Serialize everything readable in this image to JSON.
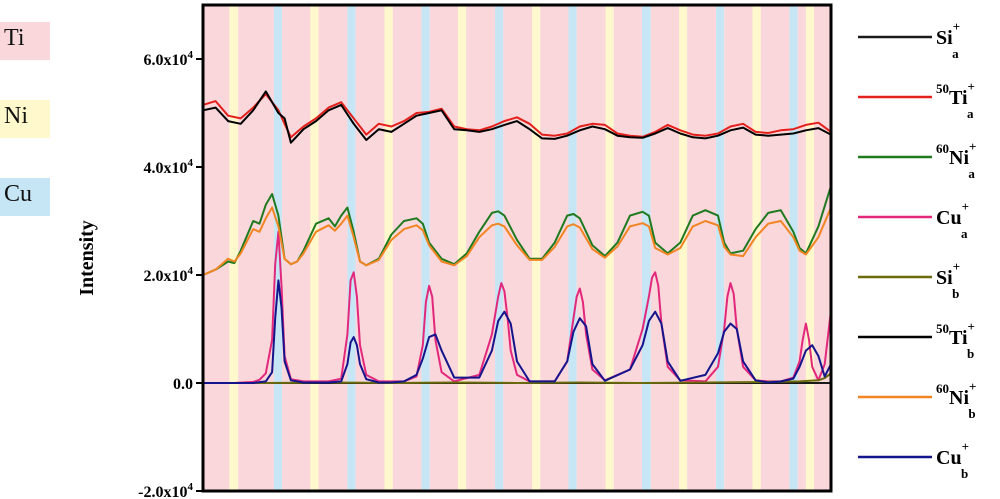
{
  "layer_key": [
    {
      "label": "Ti",
      "color": "#f9d7db"
    },
    {
      "label": "Ni",
      "color": "#fff8cc"
    },
    {
      "label": "Cu",
      "color": "#c6e6f5"
    }
  ],
  "chart_data": {
    "type": "line",
    "title": "",
    "xlabel": "",
    "ylabel": "Intensity",
    "ylim": [
      -20000,
      70000
    ],
    "xlim": [
      0,
      100
    ],
    "grid": false,
    "legend_position": "right-outside",
    "y_ticks": [
      {
        "value": 60000,
        "label": "6.0x10",
        "exp": "4"
      },
      {
        "value": 40000,
        "label": "4.0x10",
        "exp": "4"
      },
      {
        "value": 20000,
        "label": "2.0x10",
        "exp": "4"
      },
      {
        "value": 0,
        "label": "0.0",
        "exp": ""
      },
      {
        "value": -20000,
        "label": "-2.0x10",
        "exp": "4"
      }
    ],
    "bands": [
      {
        "start": 0.0,
        "end": 4.2,
        "layer": "Ti"
      },
      {
        "start": 4.2,
        "end": 5.6,
        "layer": "Ni"
      },
      {
        "start": 5.6,
        "end": 11.3,
        "layer": "Ti"
      },
      {
        "start": 11.3,
        "end": 12.6,
        "layer": "Cu"
      },
      {
        "start": 12.6,
        "end": 17.1,
        "layer": "Ti"
      },
      {
        "start": 17.1,
        "end": 18.4,
        "layer": "Ni"
      },
      {
        "start": 18.4,
        "end": 23.0,
        "layer": "Ti"
      },
      {
        "start": 23.0,
        "end": 24.3,
        "layer": "Cu"
      },
      {
        "start": 24.3,
        "end": 28.9,
        "layer": "Ti"
      },
      {
        "start": 28.9,
        "end": 30.2,
        "layer": "Ni"
      },
      {
        "start": 30.2,
        "end": 34.8,
        "layer": "Ti"
      },
      {
        "start": 34.8,
        "end": 36.1,
        "layer": "Cu"
      },
      {
        "start": 36.1,
        "end": 40.6,
        "layer": "Ti"
      },
      {
        "start": 40.6,
        "end": 41.9,
        "layer": "Ni"
      },
      {
        "start": 41.9,
        "end": 46.5,
        "layer": "Ti"
      },
      {
        "start": 46.5,
        "end": 47.8,
        "layer": "Cu"
      },
      {
        "start": 47.8,
        "end": 52.4,
        "layer": "Ti"
      },
      {
        "start": 52.4,
        "end": 53.7,
        "layer": "Ni"
      },
      {
        "start": 53.7,
        "end": 58.2,
        "layer": "Ti"
      },
      {
        "start": 58.2,
        "end": 59.5,
        "layer": "Cu"
      },
      {
        "start": 59.5,
        "end": 64.1,
        "layer": "Ti"
      },
      {
        "start": 64.1,
        "end": 65.4,
        "layer": "Ni"
      },
      {
        "start": 65.4,
        "end": 69.9,
        "layer": "Ti"
      },
      {
        "start": 69.9,
        "end": 71.3,
        "layer": "Cu"
      },
      {
        "start": 71.3,
        "end": 75.8,
        "layer": "Ti"
      },
      {
        "start": 75.8,
        "end": 77.1,
        "layer": "Ni"
      },
      {
        "start": 77.1,
        "end": 81.7,
        "layer": "Ti"
      },
      {
        "start": 81.7,
        "end": 83.0,
        "layer": "Cu"
      },
      {
        "start": 83.0,
        "end": 87.5,
        "layer": "Ti"
      },
      {
        "start": 87.5,
        "end": 88.8,
        "layer": "Ni"
      },
      {
        "start": 88.8,
        "end": 93.4,
        "layer": "Ti"
      },
      {
        "start": 93.4,
        "end": 94.7,
        "layer": "Cu"
      },
      {
        "start": 94.7,
        "end": 96.0,
        "layer": "Ti"
      },
      {
        "start": 96.0,
        "end": 97.3,
        "layer": "Ni"
      },
      {
        "start": 97.3,
        "end": 100.0,
        "layer": "Ti"
      }
    ],
    "series": [
      {
        "name": "Si",
        "sup_pre": "",
        "sub": "a",
        "color": "#1a1a1a",
        "x": [
          0,
          100
        ],
        "y": [
          0,
          0
        ]
      },
      {
        "name": "Ti",
        "sup_pre": "50",
        "sub": "a",
        "color": "#e3201b",
        "x": [
          0,
          2,
          4,
          6,
          8,
          10,
          12,
          13,
          14,
          16,
          18,
          20,
          22,
          24,
          26,
          28,
          30,
          32,
          34,
          36,
          38,
          40,
          42,
          44,
          46,
          48,
          50,
          52,
          54,
          56,
          58,
          60,
          62,
          64,
          66,
          68,
          70,
          72,
          74,
          76,
          78,
          80,
          82,
          84,
          86,
          88,
          90,
          92,
          94,
          96,
          98,
          100
        ],
        "y": [
          51500,
          52200,
          49500,
          49000,
          51000,
          53500,
          50500,
          48000,
          45500,
          47500,
          49000,
          51000,
          52000,
          49000,
          46000,
          48000,
          47500,
          48500,
          50000,
          50200,
          50800,
          47500,
          47000,
          46800,
          47500,
          48500,
          49200,
          48000,
          46000,
          45800,
          46200,
          47500,
          48000,
          47800,
          46200,
          45800,
          45600,
          46500,
          47800,
          46800,
          46000,
          45800,
          46200,
          47500,
          48000,
          46500,
          46300,
          46800,
          47000,
          47800,
          48200,
          46500
        ]
      },
      {
        "name": "Ni",
        "sup_pre": "60",
        "sub": "a",
        "color": "#1f7a1f",
        "x": [
          0,
          2,
          4,
          5,
          6,
          8,
          9,
          10,
          11,
          12,
          13,
          14,
          15,
          16,
          18,
          20,
          21,
          22,
          23,
          24,
          25,
          26,
          28,
          30,
          32,
          34,
          35,
          36,
          38,
          40,
          42,
          44,
          46,
          47,
          48,
          50,
          52,
          54,
          56,
          58,
          59,
          60,
          62,
          64,
          66,
          68,
          70,
          71,
          72,
          74,
          76,
          78,
          80,
          82,
          83,
          84,
          86,
          88,
          90,
          92,
          94,
          95,
          96,
          98,
          100
        ],
        "y": [
          20000,
          21000,
          22500,
          22200,
          24500,
          30000,
          29500,
          33000,
          35000,
          31000,
          23000,
          22000,
          22500,
          24500,
          29500,
          30500,
          29000,
          31000,
          32500,
          28000,
          22500,
          21800,
          23000,
          27500,
          30000,
          30500,
          29500,
          26000,
          23000,
          22000,
          24000,
          28000,
          31500,
          31800,
          31000,
          26500,
          23000,
          23000,
          26000,
          31000,
          31300,
          30500,
          25500,
          23500,
          26000,
          31000,
          31700,
          31000,
          26000,
          24000,
          26000,
          31000,
          32000,
          31000,
          26000,
          24000,
          24500,
          28500,
          31500,
          32000,
          28000,
          25000,
          24000,
          29000,
          36500
        ]
      },
      {
        "name": "Cu",
        "sup_pre": "",
        "sub": "a",
        "color": "#e3287c",
        "x": [
          0,
          5,
          8,
          9,
          10,
          11,
          11.5,
          12,
          12.5,
          13,
          14,
          16,
          20,
          22,
          23,
          23.5,
          24,
          24.5,
          25,
          26,
          28,
          30,
          32,
          34,
          35,
          35.5,
          36,
          36.5,
          37,
          38,
          40,
          44,
          46,
          47,
          47.5,
          48,
          48.5,
          49,
          50,
          52,
          56,
          58,
          59,
          59.5,
          60,
          60.5,
          61,
          62,
          64,
          68,
          70,
          71,
          71.5,
          72,
          72.5,
          73,
          74,
          76,
          80,
          82,
          83,
          83.5,
          84,
          84.5,
          85,
          86,
          88,
          90,
          92,
          94,
          95,
          95.5,
          96,
          96.5,
          97,
          98,
          99,
          100
        ],
        "y": [
          0,
          0,
          200,
          600,
          1800,
          8000,
          22000,
          28000,
          18000,
          5000,
          700,
          300,
          300,
          800,
          9000,
          19000,
          20500,
          16000,
          7000,
          1500,
          300,
          300,
          300,
          1200,
          7000,
          15000,
          18000,
          16000,
          8000,
          2000,
          300,
          1500,
          9000,
          16000,
          18500,
          17000,
          12000,
          6000,
          1500,
          300,
          300,
          4000,
          12000,
          16000,
          17500,
          15000,
          9000,
          2500,
          500,
          2500,
          10000,
          16000,
          19500,
          20500,
          18000,
          11000,
          3000,
          500,
          300,
          3000,
          10000,
          16000,
          18500,
          16500,
          10000,
          3000,
          500,
          300,
          300,
          1000,
          4000,
          8000,
          11000,
          8000,
          3000,
          500,
          3500,
          13500
        ]
      },
      {
        "name": "Si",
        "sup_pre": "",
        "sub": "b",
        "color": "#6b6b0d",
        "x": [
          0,
          10,
          20,
          30,
          40,
          50,
          60,
          70,
          80,
          90,
          95,
          98,
          99,
          100
        ],
        "y": [
          0,
          0,
          100,
          0,
          100,
          0,
          100,
          0,
          100,
          200,
          300,
          500,
          900,
          1800
        ]
      },
      {
        "name": "Ti",
        "sup_pre": "50",
        "sub": "b",
        "color": "#000000",
        "x": [
          0,
          2,
          4,
          6,
          8,
          10,
          12,
          13,
          14,
          16,
          18,
          20,
          22,
          24,
          26,
          28,
          30,
          32,
          34,
          36,
          38,
          40,
          42,
          44,
          46,
          48,
          50,
          52,
          54,
          56,
          58,
          60,
          62,
          64,
          66,
          68,
          70,
          72,
          74,
          76,
          78,
          80,
          82,
          84,
          86,
          88,
          90,
          92,
          94,
          96,
          98,
          100
        ],
        "y": [
          50500,
          51000,
          48500,
          48000,
          50500,
          54000,
          50000,
          49000,
          44500,
          47000,
          48500,
          50500,
          51500,
          48000,
          45000,
          47000,
          46500,
          48000,
          49500,
          50000,
          50500,
          47000,
          46800,
          46500,
          47000,
          47800,
          48500,
          47000,
          45300,
          45200,
          45800,
          46800,
          47500,
          47000,
          45800,
          45500,
          45400,
          46200,
          47200,
          46200,
          45500,
          45300,
          45800,
          46800,
          47300,
          46000,
          45800,
          46000,
          46200,
          46800,
          47200,
          46000
        ]
      },
      {
        "name": "Ni",
        "sup_pre": "60",
        "sub": "b",
        "color": "#f28522",
        "x": [
          0,
          2,
          4,
          5,
          6,
          8,
          9,
          10,
          11,
          12,
          13,
          14,
          15,
          16,
          18,
          20,
          21,
          22,
          23,
          24,
          25,
          26,
          28,
          30,
          32,
          34,
          35,
          36,
          38,
          40,
          42,
          44,
          46,
          47,
          48,
          50,
          52,
          54,
          56,
          58,
          59,
          60,
          62,
          64,
          66,
          68,
          70,
          71,
          72,
          74,
          76,
          78,
          80,
          82,
          83,
          84,
          86,
          88,
          90,
          92,
          94,
          95,
          96,
          98,
          100
        ],
        "y": [
          20000,
          21000,
          23000,
          22500,
          24000,
          28500,
          28000,
          30500,
          32500,
          29000,
          23000,
          22000,
          22500,
          24000,
          28000,
          29200,
          28200,
          29500,
          31000,
          27000,
          22500,
          21800,
          22800,
          26500,
          28500,
          29200,
          28300,
          25500,
          22500,
          21800,
          23500,
          27000,
          29200,
          29500,
          29000,
          25500,
          22800,
          22800,
          25200,
          29000,
          29400,
          28800,
          24800,
          23200,
          25300,
          29000,
          29600,
          29000,
          25000,
          23800,
          25000,
          29000,
          30000,
          29200,
          25200,
          23800,
          23500,
          27000,
          29500,
          30000,
          27000,
          24500,
          23800,
          27000,
          32500
        ]
      },
      {
        "name": "Cu",
        "sup_pre": "",
        "sub": "b",
        "color": "#14148c",
        "x": [
          0,
          5,
          8,
          10,
          11,
          11.5,
          12,
          12.5,
          13,
          14,
          16,
          20,
          22,
          23,
          23.5,
          24,
          24.5,
          25,
          26,
          28,
          30,
          32,
          34,
          35,
          36,
          37,
          38,
          40,
          44,
          46,
          47,
          48,
          49,
          50,
          52,
          56,
          58,
          59,
          60,
          61,
          62,
          64,
          68,
          70,
          71,
          72,
          73,
          74,
          76,
          80,
          82,
          83,
          84,
          85,
          86,
          88,
          90,
          92,
          94,
          95,
          96,
          97,
          98,
          99,
          100
        ],
        "y": [
          0,
          0,
          0,
          300,
          2000,
          12000,
          19000,
          14000,
          4000,
          500,
          100,
          100,
          300,
          3500,
          7500,
          8500,
          7000,
          3500,
          700,
          100,
          100,
          300,
          1500,
          4500,
          8500,
          9000,
          6000,
          1000,
          1000,
          6000,
          11500,
          13200,
          11000,
          4000,
          300,
          300,
          4000,
          9500,
          12000,
          10500,
          3500,
          400,
          2500,
          7000,
          11500,
          13200,
          11000,
          4000,
          400,
          1500,
          5500,
          9500,
          11000,
          10000,
          4000,
          500,
          100,
          300,
          800,
          3000,
          6000,
          7000,
          5000,
          1200,
          3500
        ]
      }
    ]
  }
}
